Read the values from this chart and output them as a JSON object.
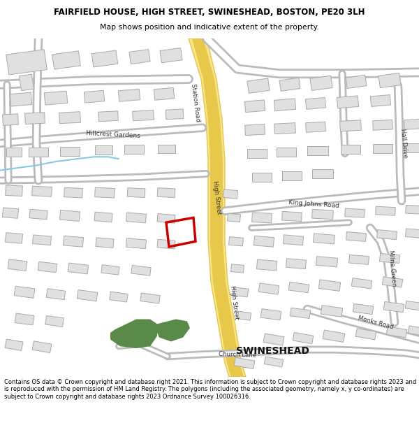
{
  "title": "FAIRFIELD HOUSE, HIGH STREET, SWINESHEAD, BOSTON, PE20 3LH",
  "subtitle": "Map shows position and indicative extent of the property.",
  "footer": "Contains OS data © Crown copyright and database right 2021. This information is subject to Crown copyright and database rights 2023 and is reproduced with the permission of HM Land Registry. The polygons (including the associated geometry, namely x, y co-ordinates) are subject to Crown copyright and database rights 2023 Ordnance Survey 100026316.",
  "bg_color": "#ffffff",
  "map_bg": "#ffffff",
  "road_yellow": "#e8c84a",
  "road_yellow_light": "#f5e48a",
  "road_gray_edge": "#bbbbbb",
  "road_white": "#ffffff",
  "building_fill": "#e0e0e0",
  "building_edge": "#aaaaaa",
  "red_polygon": "#cc0000",
  "green_fill": "#5a8a4a",
  "blue_line": "#88c8e0",
  "text_dark": "#222222",
  "text_road": "#444444",
  "swineshead_label": "SWINESHEAD"
}
